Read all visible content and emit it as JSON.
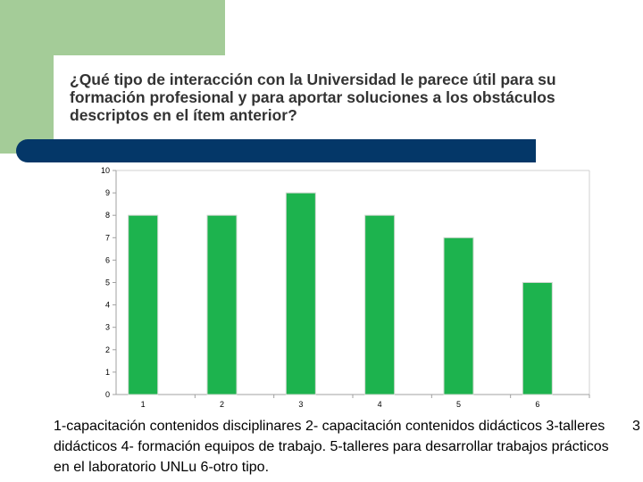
{
  "title": "¿Qué tipo de interacción con la Universidad le parece útil para su formación profesional y para aportar soluciones a los obstáculos descriptos en el ítem anterior?",
  "caption": "1-capacitación contenidos disciplinares 2- capacitación contenidos didácticos 3-talleres didácticos  4- formación equipos de trabajo.  5-talleres para desarrollar trabajos prácticos en el laboratorio UNLu 6-otro tipo.",
  "caption_overflow": "3",
  "colors": {
    "bar": "#1db34e",
    "navy": "#043768",
    "green_block": "#a4cc98"
  },
  "chart_data": {
    "type": "bar",
    "categories": [
      "1",
      "2",
      "3",
      "4",
      "5",
      "6"
    ],
    "values": [
      8,
      8,
      9,
      8,
      7,
      5
    ],
    "title": "",
    "xlabel": "",
    "ylabel": "",
    "ylim": [
      0,
      10
    ],
    "yticks": [
      "0",
      "1",
      "2",
      "3",
      "4",
      "5",
      "6",
      "7",
      "8",
      "9",
      "10"
    ],
    "grid": false
  }
}
